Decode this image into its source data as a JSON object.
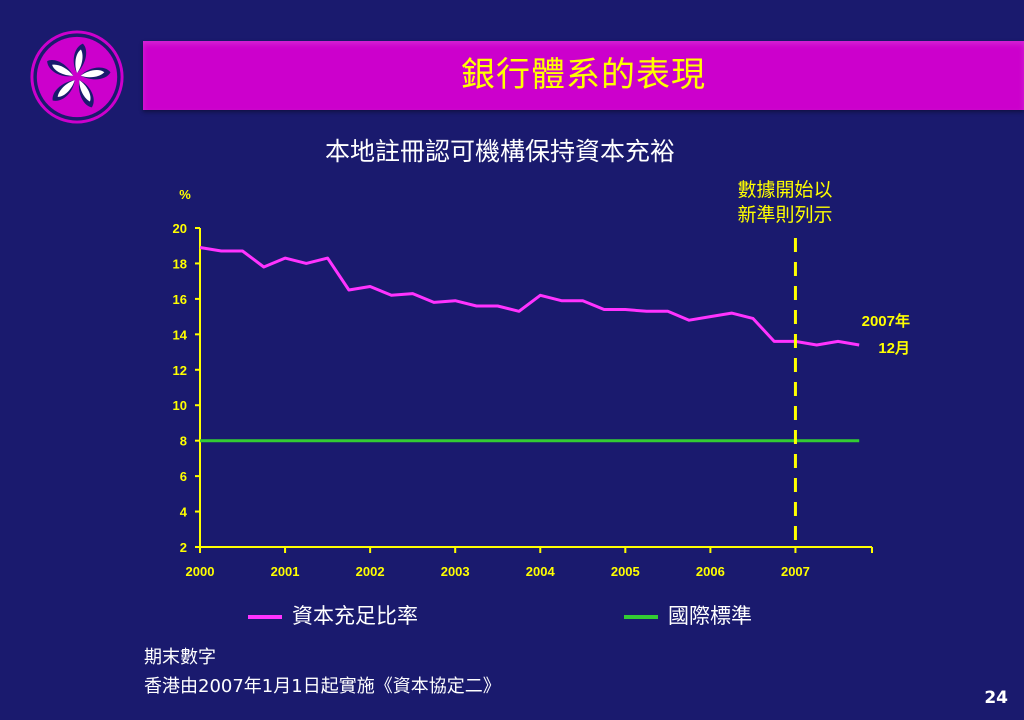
{
  "slide": {
    "title": "銀行體系的表現",
    "page_number": "24",
    "notes": [
      "期末數字",
      "香港由2007年1月1日起實施《資本協定二》"
    ]
  },
  "colors": {
    "background": "#1a1a6e",
    "title_bar": "#cc00cc",
    "title_text": "#ffff00",
    "axis": "#ffff00",
    "series_capital": "#ff33ff",
    "series_standard": "#33cc33",
    "marker_line": "#ffff00"
  },
  "chart_data": {
    "type": "line",
    "title": "本地註冊認可機構保持資本充裕",
    "ylabel": "%",
    "ylim": [
      2,
      20
    ],
    "yticks": [
      2,
      4,
      6,
      8,
      10,
      12,
      14,
      16,
      18,
      20
    ],
    "xlim": [
      2000,
      2007.9
    ],
    "xticks": [
      2000,
      2001,
      2002,
      2003,
      2004,
      2005,
      2006,
      2007
    ],
    "grid": false,
    "legend_position": "bottom",
    "series": [
      {
        "name": "資本充足比率",
        "color": "#ff33ff",
        "points": [
          [
            2000.0,
            18.9
          ],
          [
            2000.25,
            18.7
          ],
          [
            2000.5,
            18.7
          ],
          [
            2000.75,
            17.8
          ],
          [
            2001.0,
            18.3
          ],
          [
            2001.25,
            18.0
          ],
          [
            2001.5,
            18.3
          ],
          [
            2001.75,
            16.5
          ],
          [
            2002.0,
            16.7
          ],
          [
            2002.25,
            16.2
          ],
          [
            2002.5,
            16.3
          ],
          [
            2002.75,
            15.8
          ],
          [
            2003.0,
            15.9
          ],
          [
            2003.25,
            15.6
          ],
          [
            2003.5,
            15.6
          ],
          [
            2003.75,
            15.3
          ],
          [
            2004.0,
            16.2
          ],
          [
            2004.25,
            15.9
          ],
          [
            2004.5,
            15.9
          ],
          [
            2004.75,
            15.4
          ],
          [
            2005.0,
            15.4
          ],
          [
            2005.25,
            15.3
          ],
          [
            2005.5,
            15.3
          ],
          [
            2005.75,
            14.8
          ],
          [
            2006.0,
            15.0
          ],
          [
            2006.25,
            15.2
          ],
          [
            2006.5,
            14.9
          ],
          [
            2006.75,
            13.6
          ],
          [
            2007.0,
            13.6
          ],
          [
            2007.25,
            13.4
          ],
          [
            2007.5,
            13.6
          ],
          [
            2007.75,
            13.4
          ]
        ]
      },
      {
        "name": "國際標準",
        "color": "#33cc33",
        "points": [
          [
            2000.0,
            8
          ],
          [
            2007.75,
            8
          ]
        ]
      }
    ],
    "annotations": {
      "basel_marker": {
        "x": 2007.0,
        "label_lines": [
          "數據開始以",
          "新準則列示"
        ]
      },
      "last_point": {
        "label_lines": [
          "2007年",
          "12月"
        ]
      }
    }
  }
}
